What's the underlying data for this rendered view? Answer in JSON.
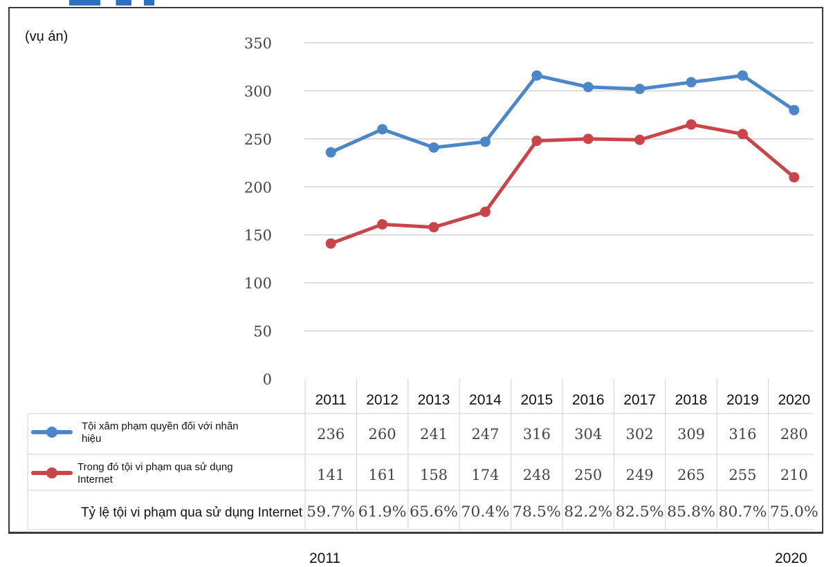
{
  "chart_data": {
    "type": "line",
    "y_unit_label": "(vụ án)",
    "ylim": [
      0,
      350
    ],
    "yticks": [
      0,
      50,
      100,
      150,
      200,
      250,
      300,
      350
    ],
    "categories": [
      "2011",
      "2012",
      "2013",
      "2014",
      "2015",
      "2016",
      "2017",
      "2018",
      "2019",
      "2020"
    ],
    "series": [
      {
        "name": "Tội xâm phạm quyền đối với nhãn hiệu",
        "color": "#4a86c8",
        "values": [
          236,
          260,
          241,
          247,
          316,
          304,
          302,
          309,
          316,
          280
        ]
      },
      {
        "name": "Trong đó tội vi phạm qua sử dụng Internet",
        "color": "#c8464a",
        "values": [
          141,
          161,
          158,
          174,
          248,
          250,
          249,
          265,
          255,
          210
        ]
      }
    ],
    "ratio_row": {
      "label": "Tỷ lệ tội vi phạm qua sử dụng Internet",
      "values": [
        "59.7%",
        "61.9%",
        "65.6%",
        "70.4%",
        "78.5%",
        "82.2%",
        "82.5%",
        "85.8%",
        "80.7%",
        "75.0%"
      ]
    },
    "grid": true
  },
  "below_labels": {
    "start": "2011",
    "end": "2020"
  }
}
